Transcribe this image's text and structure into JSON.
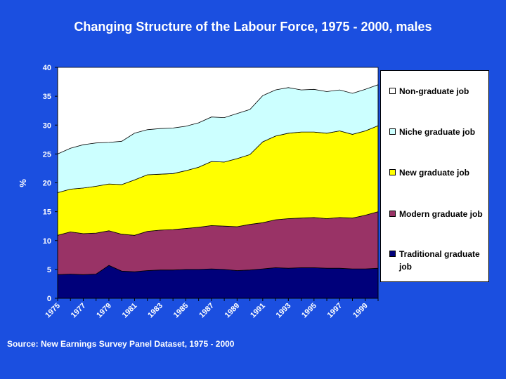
{
  "title": "Changing Structure of the Labour Force, 1975 - 2000, males",
  "source": "Source: New Earnings Survey Panel Dataset, 1975 - 2000",
  "colors": {
    "background": "#1b4fe0",
    "plot_area": "#ffffff",
    "traditional": "#00007a",
    "modern": "#993366",
    "new": "#ffff00",
    "niche": "#ccffff",
    "non_graduate": "#ffffff"
  },
  "chart_data": {
    "type": "area",
    "stacked": true,
    "title": "Changing Structure of the Labour Force, 1975 - 2000, males",
    "xlabel": "",
    "ylabel": "%",
    "ylim": [
      0,
      40
    ],
    "yticks": [
      "0",
      "5",
      "10",
      "15",
      "20",
      "25",
      "30",
      "35",
      "40"
    ],
    "x": [
      1975,
      1976,
      1977,
      1978,
      1979,
      1980,
      1981,
      1982,
      1983,
      1984,
      1985,
      1986,
      1987,
      1988,
      1989,
      1990,
      1991,
      1992,
      1993,
      1994,
      1995,
      1996,
      1997,
      1998,
      1999,
      2000
    ],
    "xtick_labels": [
      "1975",
      "1977",
      "1979",
      "1981",
      "1983",
      "1985",
      "1987",
      "1989",
      "1991",
      "1993",
      "1995",
      "1997",
      "1999"
    ],
    "grid": false,
    "legend_position": "right",
    "series": [
      {
        "name": "Traditional graduate job",
        "color": "#00007a",
        "values": [
          4.1,
          4.2,
          4.1,
          4.2,
          5.7,
          4.7,
          4.6,
          4.8,
          4.9,
          4.9,
          5.0,
          5.0,
          5.1,
          5.0,
          4.8,
          4.9,
          5.1,
          5.3,
          5.2,
          5.3,
          5.3,
          5.2,
          5.2,
          5.1,
          5.1,
          5.2
        ]
      },
      {
        "name": "Modern graduate job",
        "color": "#993366",
        "values": [
          6.8,
          7.3,
          7.1,
          7.1,
          6.0,
          6.4,
          6.3,
          6.8,
          6.9,
          7.0,
          7.1,
          7.3,
          7.5,
          7.5,
          7.6,
          7.9,
          8.0,
          8.3,
          8.6,
          8.6,
          8.7,
          8.6,
          8.8,
          8.8,
          9.3,
          9.8
        ]
      },
      {
        "name": "New graduate job",
        "color": "#ffff00",
        "values": [
          7.4,
          7.4,
          7.9,
          8.1,
          8.1,
          8.6,
          9.6,
          9.8,
          9.7,
          9.7,
          10.0,
          10.4,
          11.1,
          11.1,
          11.8,
          12.1,
          14.0,
          14.5,
          14.8,
          14.9,
          14.8,
          14.8,
          15.0,
          14.5,
          14.6,
          14.9
        ]
      },
      {
        "name": "Niche graduate job",
        "color": "#ccffff",
        "values": [
          6.7,
          7.1,
          7.5,
          7.5,
          7.2,
          7.5,
          8.1,
          7.8,
          7.9,
          7.9,
          7.7,
          7.7,
          7.7,
          7.7,
          7.8,
          7.8,
          8.0,
          8.0,
          7.9,
          7.3,
          7.4,
          7.2,
          7.1,
          7.1,
          7.2,
          7.1
        ]
      },
      {
        "name": "Non-graduate job",
        "color": "#ffffff",
        "values": [
          0,
          0,
          0,
          0,
          0,
          0,
          0,
          0,
          0,
          0,
          0,
          0,
          0,
          0,
          0,
          0,
          0,
          0,
          0,
          0,
          0,
          0,
          0,
          0,
          0,
          0
        ]
      }
    ]
  },
  "legend": [
    {
      "label": "Non-graduate job",
      "color": "#ffffff"
    },
    {
      "label": "Niche graduate job",
      "color": "#ccffff"
    },
    {
      "label": "New graduate job",
      "color": "#ffff00"
    },
    {
      "label": "Modern graduate job",
      "color": "#993366"
    },
    {
      "label": "Traditional graduate job",
      "color": "#00007a"
    }
  ]
}
